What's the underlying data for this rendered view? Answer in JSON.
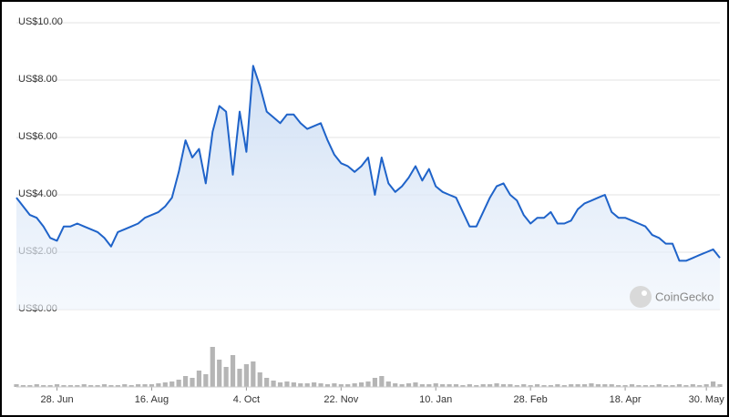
{
  "chart_data": [
    {
      "type": "line",
      "color": "#1f63c9",
      "categories": [
        null,
        null,
        null,
        null,
        null,
        null,
        "28. Jun",
        null,
        null,
        null,
        null,
        null,
        null,
        null,
        null,
        null,
        null,
        null,
        null,
        null,
        "16. Aug",
        null,
        null,
        null,
        null,
        null,
        null,
        null,
        null,
        null,
        null,
        null,
        null,
        null,
        "4. Oct",
        null,
        null,
        null,
        null,
        null,
        null,
        null,
        null,
        null,
        null,
        null,
        null,
        null,
        "22. Nov",
        null,
        null,
        null,
        null,
        null,
        null,
        null,
        null,
        null,
        null,
        null,
        null,
        null,
        "10. Jan",
        null,
        null,
        null,
        null,
        null,
        null,
        null,
        null,
        null,
        null,
        null,
        null,
        null,
        "28. Feb",
        null,
        null,
        null,
        null,
        null,
        null,
        null,
        null,
        null,
        null,
        null,
        null,
        null,
        "18. Apr",
        null,
        null,
        null,
        null,
        null,
        null,
        null,
        null,
        null,
        null,
        null,
        "30. May",
        null,
        null
      ],
      "values": [
        3.9,
        3.6,
        3.3,
        3.2,
        2.9,
        2.5,
        2.4,
        2.9,
        2.9,
        3.0,
        2.9,
        2.8,
        2.7,
        2.5,
        2.2,
        2.7,
        2.8,
        2.9,
        3.0,
        3.2,
        3.3,
        3.4,
        3.6,
        3.9,
        4.8,
        5.9,
        5.3,
        5.6,
        4.4,
        6.2,
        7.1,
        6.9,
        4.7,
        6.9,
        5.5,
        8.5,
        7.8,
        6.9,
        6.7,
        6.5,
        6.8,
        6.8,
        6.5,
        6.3,
        6.4,
        6.5,
        5.9,
        5.4,
        5.1,
        5.0,
        4.8,
        5.0,
        5.3,
        4.0,
        5.3,
        4.4,
        4.1,
        4.3,
        4.6,
        5.0,
        4.5,
        4.9,
        4.3,
        4.1,
        4.0,
        3.9,
        3.4,
        2.9,
        2.9,
        3.4,
        3.9,
        4.3,
        4.4,
        4.0,
        3.8,
        3.3,
        3.0,
        3.2,
        3.2,
        3.4,
        3.0,
        3.0,
        3.1,
        3.5,
        3.7,
        3.8,
        3.9,
        4.0,
        3.4,
        3.2,
        3.2,
        3.1,
        3.0,
        2.9,
        2.6,
        2.5,
        2.3,
        2.3,
        1.7,
        1.7,
        1.8,
        1.9,
        2.0,
        2.1,
        1.8
      ],
      "ylim": [
        0,
        10
      ],
      "yticks": [
        {
          "value": 0,
          "label": "US$0.00"
        },
        {
          "value": 2,
          "label": "US$2.00"
        },
        {
          "value": 4,
          "label": "US$4.00"
        },
        {
          "value": 6,
          "label": "US$6.00"
        },
        {
          "value": 8,
          "label": "US$8.00"
        },
        {
          "value": 10,
          "label": "US$10.00"
        }
      ],
      "grid": true,
      "watermark": "CoinGecko"
    },
    {
      "type": "bar",
      "color": "#b5b5b5",
      "values": [
        3,
        2,
        2,
        3,
        2,
        2,
        3,
        2,
        2,
        2,
        3,
        2,
        2,
        3,
        2,
        2,
        3,
        2,
        3,
        3,
        3,
        4,
        5,
        6,
        8,
        12,
        10,
        18,
        14,
        44,
        30,
        22,
        35,
        20,
        25,
        28,
        16,
        10,
        7,
        5,
        6,
        5,
        4,
        4,
        5,
        4,
        3,
        4,
        3,
        3,
        4,
        5,
        6,
        10,
        12,
        6,
        4,
        3,
        4,
        5,
        3,
        3,
        4,
        3,
        3,
        3,
        2,
        3,
        2,
        3,
        3,
        4,
        3,
        3,
        2,
        3,
        2,
        3,
        2,
        2,
        3,
        2,
        3,
        3,
        3,
        4,
        3,
        3,
        3,
        2,
        2,
        3,
        2,
        2,
        2,
        3,
        2,
        2,
        3,
        2,
        3,
        2,
        3,
        6,
        3
      ],
      "ylim": [
        0,
        50
      ]
    }
  ]
}
